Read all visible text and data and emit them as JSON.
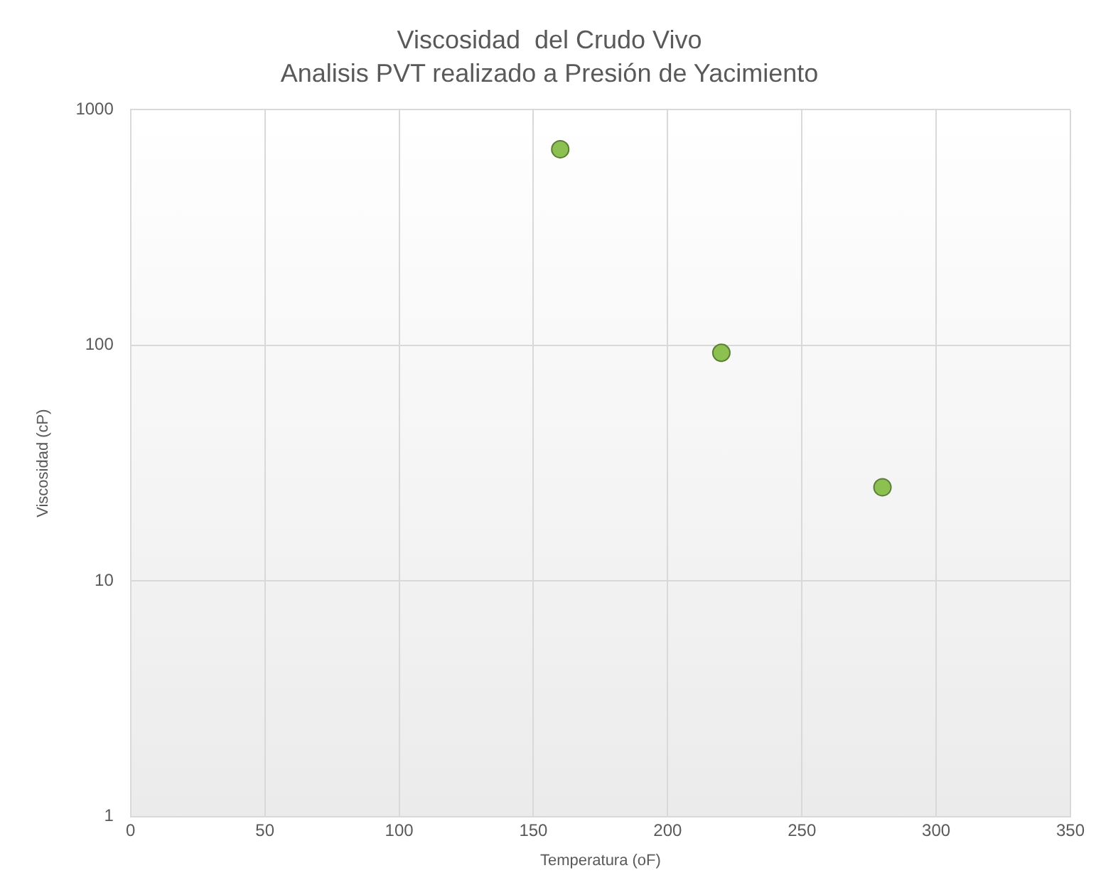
{
  "chart_data": {
    "type": "scatter",
    "title": "Viscosidad  del Crudo Vivo",
    "subtitle": "Analisis PVT realizado a Presión de Yacimiento",
    "xlabel": "Temperatura (oF)",
    "ylabel": "Viscosidad (cP)",
    "x": [
      160,
      220,
      280
    ],
    "series": [
      {
        "color": "#8cc152",
        "values": [
          680,
          93,
          25
        ]
      }
    ],
    "xlim": [
      0,
      350
    ],
    "xticks": [
      0,
      50,
      100,
      150,
      200,
      250,
      300,
      350
    ],
    "ylim": [
      1,
      1000
    ],
    "yticks": [
      1,
      10,
      100,
      1000
    ],
    "log": "y",
    "grid": true,
    "legend": false,
    "marker": "circle"
  }
}
